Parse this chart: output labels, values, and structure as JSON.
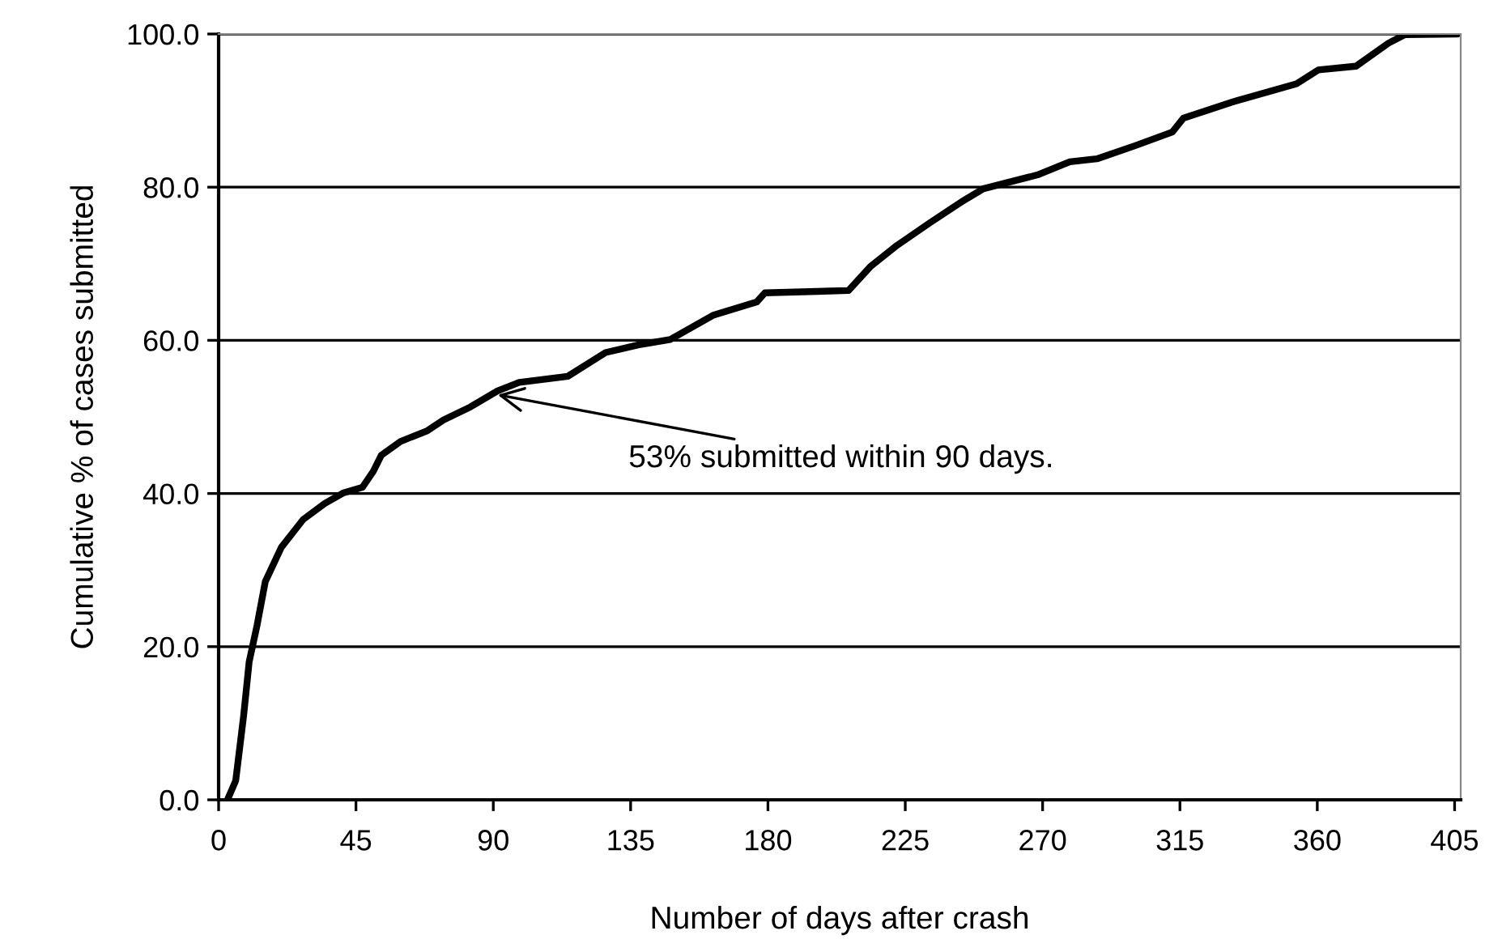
{
  "chart_data": {
    "type": "line",
    "xlabel": "Number of days after crash",
    "ylabel": "Cumulative % of cases submitted",
    "series": [
      {
        "color": "#000000",
        "x": [
          2.9,
          5.6,
          8.2,
          10,
          12.6,
          15.3,
          20.6,
          27.7,
          34.8,
          41,
          47.1,
          50.7,
          53.3,
          59.6,
          68.4,
          73.7,
          82.5,
          91.4,
          98.5,
          114.4,
          126.8,
          137.4,
          148,
          162.2,
          176.3,
          179,
          206.4,
          213.5,
          222.3,
          232.9,
          243.5,
          250.6,
          268.3,
          278.9,
          287.8,
          300.2,
          312.5,
          316.1,
          332,
          353.2,
          360.3,
          372.7,
          383.3,
          388.6,
          406
        ],
        "values": [
          0,
          2.5,
          11,
          18,
          22.8,
          28.5,
          33,
          36.6,
          38.7,
          40.1,
          40.8,
          42.9,
          45,
          46.8,
          48.2,
          49.6,
          51.3,
          53.4,
          54.5,
          55.3,
          58.4,
          59.4,
          60.1,
          63.3,
          65,
          66.2,
          66.5,
          69.6,
          72.4,
          75.3,
          78.1,
          79.8,
          81.6,
          83.3,
          83.7,
          85.4,
          87.2,
          89,
          91.1,
          93.5,
          95.3,
          95.8,
          98.8,
          99.9,
          100
        ]
      }
    ],
    "xlim": [
      0,
      407
    ],
    "xticks": [
      0,
      45,
      90,
      135,
      180,
      225,
      270,
      315,
      360,
      405
    ],
    "ylim": [
      0,
      100
    ],
    "yticks": [
      {
        "value": 0,
        "label": "0.0"
      },
      {
        "value": 20,
        "label": "20.0"
      },
      {
        "value": 40,
        "label": "40.0"
      },
      {
        "value": 60,
        "label": "60.0"
      },
      {
        "value": 80,
        "label": "80.0"
      },
      {
        "value": 100,
        "label": "100.0"
      }
    ],
    "grid": "y",
    "legend": false,
    "marker": "none",
    "line_style": "solid",
    "annotations": [
      {
        "text": "53% submitted within 90 days.",
        "x": 90,
        "y": 53
      }
    ]
  }
}
